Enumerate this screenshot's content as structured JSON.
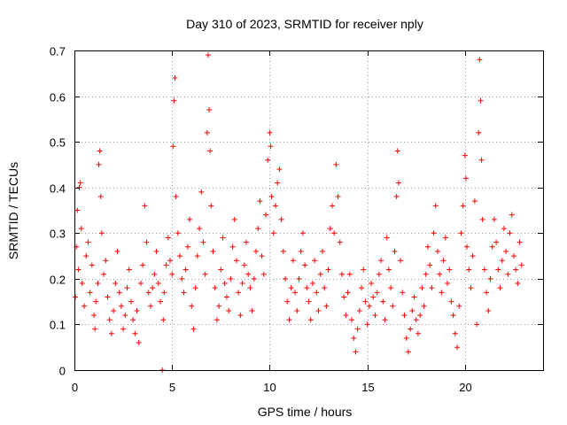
{
  "chart_data": {
    "type": "scatter",
    "title": "Day 310 of 2023, SRMTID for receiver nply",
    "xlabel": "GPS time / hours",
    "ylabel": "SRMTID / TECUs",
    "xlim": [
      0,
      24
    ],
    "ylim": [
      0,
      0.7
    ],
    "xticks": [
      0,
      5,
      10,
      15,
      20
    ],
    "yticks": [
      0,
      0.1,
      0.2,
      0.3,
      0.4,
      0.5,
      0.6,
      0.7
    ],
    "xtick_labels": [
      "0",
      "5",
      "10",
      "15",
      "20"
    ],
    "ytick_labels": [
      "0",
      "0.1",
      "0.2",
      "0.3",
      "0.4",
      "0.5",
      "0.6",
      "0.7"
    ],
    "grid": true,
    "marker": "plus",
    "marker_color": "#ff0000",
    "series": [
      {
        "name": "SRMTID",
        "points": [
          [
            0.05,
            0.16
          ],
          [
            0.1,
            0.27
          ],
          [
            0.15,
            0.35
          ],
          [
            0.2,
            0.22
          ],
          [
            0.25,
            0.4
          ],
          [
            0.3,
            0.41
          ],
          [
            0.35,
            0.31
          ],
          [
            0.4,
            0.19
          ],
          [
            0.5,
            0.14
          ],
          [
            0.6,
            0.25
          ],
          [
            0.7,
            0.28
          ],
          [
            0.8,
            0.17
          ],
          [
            0.9,
            0.23
          ],
          [
            1.0,
            0.12
          ],
          [
            1.05,
            0.09
          ],
          [
            1.1,
            0.15
          ],
          [
            1.2,
            0.19
          ],
          [
            1.25,
            0.45
          ],
          [
            1.3,
            0.48
          ],
          [
            1.35,
            0.38
          ],
          [
            1.4,
            0.3
          ],
          [
            1.5,
            0.21
          ],
          [
            1.6,
            0.24
          ],
          [
            1.7,
            0.16
          ],
          [
            1.8,
            0.11
          ],
          [
            1.9,
            0.08
          ],
          [
            2.0,
            0.13
          ],
          [
            2.1,
            0.19
          ],
          [
            2.2,
            0.26
          ],
          [
            2.3,
            0.17
          ],
          [
            2.4,
            0.14
          ],
          [
            2.5,
            0.09
          ],
          [
            2.6,
            0.12
          ],
          [
            2.7,
            0.18
          ],
          [
            2.8,
            0.22
          ],
          [
            2.9,
            0.15
          ],
          [
            3.0,
            0.11
          ],
          [
            3.1,
            0.08
          ],
          [
            3.2,
            0.13
          ],
          [
            3.3,
            0.06
          ],
          [
            3.4,
            0.19
          ],
          [
            3.5,
            0.23
          ],
          [
            3.6,
            0.36
          ],
          [
            3.7,
            0.28
          ],
          [
            3.8,
            0.17
          ],
          [
            3.9,
            0.14
          ],
          [
            4.0,
            0.18
          ],
          [
            4.1,
            0.21
          ],
          [
            4.2,
            0.26
          ],
          [
            4.3,
            0.19
          ],
          [
            4.4,
            0.15
          ],
          [
            4.5,
            0.0
          ],
          [
            4.55,
            0.11
          ],
          [
            4.6,
            0.17
          ],
          [
            4.7,
            0.23
          ],
          [
            4.8,
            0.29
          ],
          [
            4.9,
            0.24
          ],
          [
            5.0,
            0.21
          ],
          [
            5.05,
            0.49
          ],
          [
            5.1,
            0.59
          ],
          [
            5.15,
            0.64
          ],
          [
            5.2,
            0.38
          ],
          [
            5.3,
            0.3
          ],
          [
            5.4,
            0.25
          ],
          [
            5.5,
            0.2
          ],
          [
            5.6,
            0.17
          ],
          [
            5.7,
            0.22
          ],
          [
            5.8,
            0.27
          ],
          [
            5.9,
            0.33
          ],
          [
            6.0,
            0.14
          ],
          [
            6.1,
            0.09
          ],
          [
            6.2,
            0.18
          ],
          [
            6.3,
            0.25
          ],
          [
            6.4,
            0.31
          ],
          [
            6.5,
            0.39
          ],
          [
            6.6,
            0.28
          ],
          [
            6.7,
            0.21
          ],
          [
            6.8,
            0.52
          ],
          [
            6.85,
            0.69
          ],
          [
            6.9,
            0.57
          ],
          [
            6.95,
            0.48
          ],
          [
            7.0,
            0.36
          ],
          [
            7.1,
            0.26
          ],
          [
            7.2,
            0.18
          ],
          [
            7.3,
            0.11
          ],
          [
            7.4,
            0.14
          ],
          [
            7.5,
            0.22
          ],
          [
            7.6,
            0.29
          ],
          [
            7.7,
            0.19
          ],
          [
            7.8,
            0.16
          ],
          [
            7.9,
            0.13
          ],
          [
            8.0,
            0.2
          ],
          [
            8.1,
            0.27
          ],
          [
            8.2,
            0.33
          ],
          [
            8.3,
            0.24
          ],
          [
            8.4,
            0.17
          ],
          [
            8.5,
            0.12
          ],
          [
            8.6,
            0.19
          ],
          [
            8.7,
            0.23
          ],
          [
            8.8,
            0.28
          ],
          [
            8.9,
            0.21
          ],
          [
            9.0,
            0.18
          ],
          [
            9.1,
            0.13
          ],
          [
            9.2,
            0.2
          ],
          [
            9.3,
            0.26
          ],
          [
            9.4,
            0.31
          ],
          [
            9.5,
            0.37
          ],
          [
            9.6,
            0.25
          ],
          [
            9.7,
            0.21
          ],
          [
            9.8,
            0.34
          ],
          [
            9.9,
            0.46
          ],
          [
            10.0,
            0.52
          ],
          [
            10.05,
            0.49
          ],
          [
            10.1,
            0.38
          ],
          [
            10.2,
            0.3
          ],
          [
            10.3,
            0.36
          ],
          [
            10.4,
            0.41
          ],
          [
            10.5,
            0.44
          ],
          [
            10.6,
            0.33
          ],
          [
            10.7,
            0.26
          ],
          [
            10.8,
            0.2
          ],
          [
            10.9,
            0.15
          ],
          [
            11.0,
            0.11
          ],
          [
            11.1,
            0.18
          ],
          [
            11.2,
            0.24
          ],
          [
            11.3,
            0.17
          ],
          [
            11.4,
            0.13
          ],
          [
            11.5,
            0.2
          ],
          [
            11.6,
            0.26
          ],
          [
            11.7,
            0.3
          ],
          [
            11.8,
            0.23
          ],
          [
            11.9,
            0.18
          ],
          [
            12.0,
            0.15
          ],
          [
            12.1,
            0.11
          ],
          [
            12.2,
            0.19
          ],
          [
            12.3,
            0.24
          ],
          [
            12.4,
            0.17
          ],
          [
            12.5,
            0.13
          ],
          [
            12.6,
            0.21
          ],
          [
            12.7,
            0.26
          ],
          [
            12.8,
            0.18
          ],
          [
            12.9,
            0.14
          ],
          [
            13.0,
            0.22
          ],
          [
            13.1,
            0.31
          ],
          [
            13.2,
            0.36
          ],
          [
            13.3,
            0.3
          ],
          [
            13.4,
            0.45
          ],
          [
            13.5,
            0.38
          ],
          [
            13.6,
            0.28
          ],
          [
            13.7,
            0.21
          ],
          [
            13.8,
            0.16
          ],
          [
            13.9,
            0.12
          ],
          [
            14.0,
            0.17
          ],
          [
            14.1,
            0.21
          ],
          [
            14.2,
            0.11
          ],
          [
            14.3,
            0.07
          ],
          [
            14.4,
            0.04
          ],
          [
            14.5,
            0.09
          ],
          [
            14.6,
            0.13
          ],
          [
            14.7,
            0.18
          ],
          [
            14.8,
            0.22
          ],
          [
            14.9,
            0.15
          ],
          [
            15.0,
            0.1
          ],
          [
            15.1,
            0.14
          ],
          [
            15.2,
            0.19
          ],
          [
            15.3,
            0.16
          ],
          [
            15.4,
            0.12
          ],
          [
            15.5,
            0.17
          ],
          [
            15.6,
            0.21
          ],
          [
            15.7,
            0.24
          ],
          [
            15.8,
            0.15
          ],
          [
            15.9,
            0.11
          ],
          [
            16.0,
            0.29
          ],
          [
            16.1,
            0.22
          ],
          [
            16.2,
            0.18
          ],
          [
            16.3,
            0.14
          ],
          [
            16.4,
            0.26
          ],
          [
            16.5,
            0.38
          ],
          [
            16.55,
            0.48
          ],
          [
            16.6,
            0.41
          ],
          [
            16.7,
            0.24
          ],
          [
            16.8,
            0.17
          ],
          [
            16.9,
            0.12
          ],
          [
            17.0,
            0.07
          ],
          [
            17.1,
            0.04
          ],
          [
            17.2,
            0.09
          ],
          [
            17.3,
            0.13
          ],
          [
            17.4,
            0.16
          ],
          [
            17.5,
            0.11
          ],
          [
            17.6,
            0.08
          ],
          [
            17.7,
            0.12
          ],
          [
            17.8,
            0.18
          ],
          [
            17.9,
            0.14
          ],
          [
            18.0,
            0.21
          ],
          [
            18.1,
            0.27
          ],
          [
            18.2,
            0.23
          ],
          [
            18.3,
            0.18
          ],
          [
            18.4,
            0.3
          ],
          [
            18.5,
            0.36
          ],
          [
            18.6,
            0.26
          ],
          [
            18.7,
            0.21
          ],
          [
            18.8,
            0.17
          ],
          [
            18.9,
            0.24
          ],
          [
            19.0,
            0.29
          ],
          [
            19.1,
            0.19
          ],
          [
            19.2,
            0.22
          ],
          [
            19.3,
            0.15
          ],
          [
            19.4,
            0.12
          ],
          [
            19.5,
            0.08
          ],
          [
            19.6,
            0.05
          ],
          [
            19.7,
            0.14
          ],
          [
            19.8,
            0.3
          ],
          [
            19.9,
            0.36
          ],
          [
            20.0,
            0.47
          ],
          [
            20.05,
            0.42
          ],
          [
            20.1,
            0.27
          ],
          [
            20.2,
            0.22
          ],
          [
            20.3,
            0.18
          ],
          [
            20.4,
            0.25
          ],
          [
            20.5,
            0.37
          ],
          [
            20.6,
            0.1
          ],
          [
            20.7,
            0.52
          ],
          [
            20.75,
            0.68
          ],
          [
            20.8,
            0.59
          ],
          [
            20.85,
            0.46
          ],
          [
            20.9,
            0.33
          ],
          [
            21.0,
            0.22
          ],
          [
            21.1,
            0.17
          ],
          [
            21.2,
            0.13
          ],
          [
            21.3,
            0.2
          ],
          [
            21.4,
            0.27
          ],
          [
            21.5,
            0.33
          ],
          [
            21.6,
            0.28
          ],
          [
            21.7,
            0.22
          ],
          [
            21.8,
            0.18
          ],
          [
            21.9,
            0.24
          ],
          [
            22.0,
            0.31
          ],
          [
            22.1,
            0.26
          ],
          [
            22.2,
            0.21
          ],
          [
            22.3,
            0.3
          ],
          [
            22.4,
            0.34
          ],
          [
            22.5,
            0.25
          ],
          [
            22.6,
            0.22
          ],
          [
            22.7,
            0.19
          ],
          [
            22.8,
            0.28
          ],
          [
            22.9,
            0.23
          ]
        ]
      }
    ]
  }
}
